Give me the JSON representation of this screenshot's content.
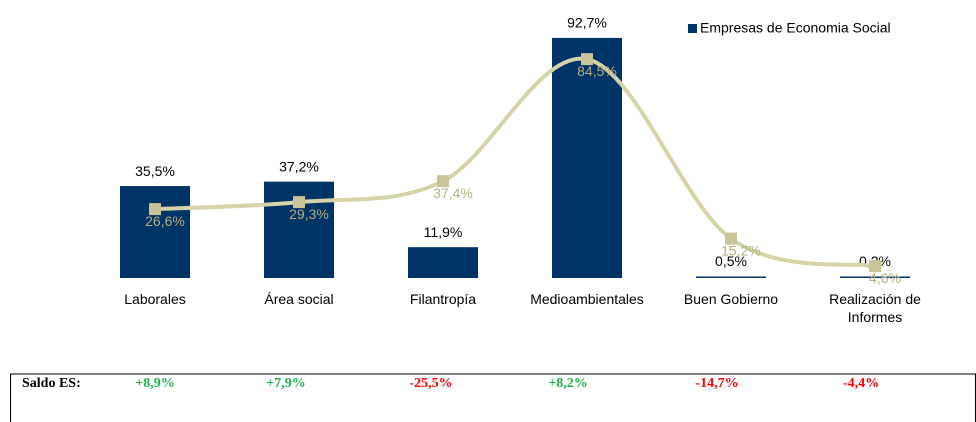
{
  "chart_data": {
    "type": "bar-line",
    "categories": [
      "Laborales",
      "Área social",
      "Filantropía",
      "Medioambientales",
      "Buen Gobierno",
      "Realización de Informes"
    ],
    "series": [
      {
        "name": "Empresas de Economia Social",
        "type": "bar",
        "color": "#003366",
        "values": [
          35.5,
          37.2,
          11.9,
          92.7,
          0.5,
          0.2
        ],
        "value_labels": [
          "35,5%",
          "37,2%",
          "11,9%",
          "92,7%",
          "0,5%",
          "0,2%"
        ]
      },
      {
        "type": "line",
        "color": "#d6d3a6",
        "values": [
          26.6,
          29.3,
          37.4,
          84.5,
          15.2,
          4.6
        ],
        "value_labels": [
          "26,6%",
          "29,3%",
          "37,4%",
          "84,5%",
          "15,2%",
          "4,6%"
        ]
      }
    ],
    "legend": "top-right",
    "balance": {
      "label": "Saldo ES:",
      "values": [
        8.9,
        7.9,
        -25.5,
        8.2,
        -14.7,
        -4.4
      ],
      "value_labels": [
        "+8,9%",
        "+7,9%",
        "-25,5%",
        "+8,2%",
        "-14,7%",
        "-4,4%"
      ]
    }
  }
}
